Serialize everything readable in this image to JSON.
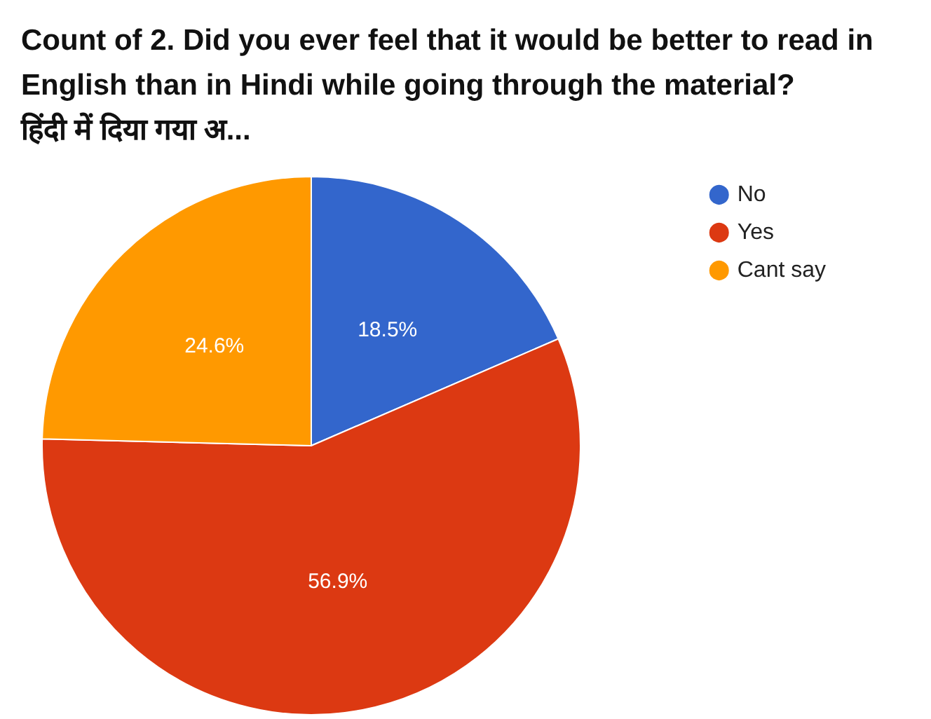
{
  "chart_data": {
    "type": "pie",
    "title": "Count of 2. Did you ever feel that it would be better to read in English than in Hindi while going through the material? हिंदी में दिया गया अ...",
    "categories": [
      "No",
      "Yes",
      "Cant say"
    ],
    "values": [
      18.5,
      56.9,
      24.6
    ],
    "value_labels": [
      "18.5%",
      "56.9%",
      "24.6%"
    ],
    "colors": [
      "#3366cc",
      "#dc3912",
      "#ff9900"
    ],
    "legend": "top right"
  }
}
